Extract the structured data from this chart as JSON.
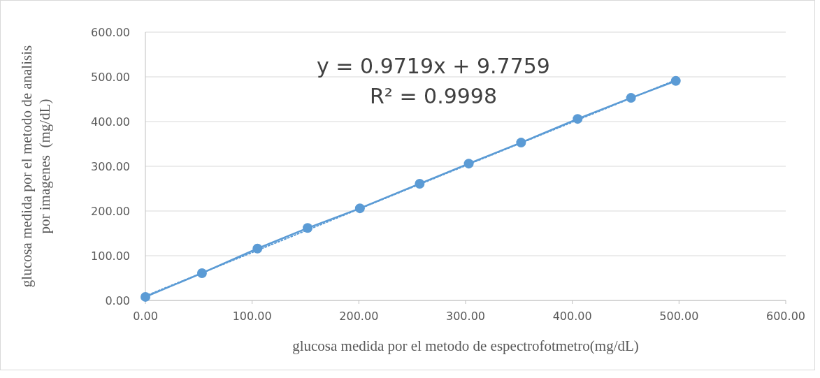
{
  "chart_data": {
    "type": "line",
    "xlabel": "glucosa medida por el metodo de espectrofotmetro(mg/dL)",
    "ylabel": "glucosa medida por el metodo de analisis por imagenes  (mg/dL)",
    "annotations": [
      "y = 0.9719x + 9.7759",
      "R² = 0.9998"
    ],
    "series": [
      {
        "color": "#5b9bd5",
        "marker": "circle",
        "line_style": "solid",
        "x": [
          0,
          53,
          105,
          152,
          201,
          257,
          303,
          352,
          405,
          455,
          497
        ],
        "values": [
          8,
          61,
          116,
          162,
          206,
          261,
          306,
          353,
          406,
          453,
          491
        ]
      },
      {
        "color": "#5b9bd5",
        "marker": "none",
        "line_style": "dotted",
        "x": [
          0,
          497
        ],
        "values": [
          10,
          493
        ]
      }
    ],
    "xlim": [
      0,
      600
    ],
    "ylim": [
      0,
      600
    ],
    "xticks": [
      {
        "value": 0,
        "label": "0.00"
      },
      {
        "value": 100,
        "label": "100.00"
      },
      {
        "value": 200,
        "label": "200.00"
      },
      {
        "value": 300,
        "label": "300.00"
      },
      {
        "value": 400,
        "label": "400.00"
      },
      {
        "value": 500,
        "label": "500.00"
      },
      {
        "value": 600,
        "label": "600.00"
      }
    ],
    "yticks": [
      {
        "value": 0,
        "label": "0.00"
      },
      {
        "value": 100,
        "label": "100.00"
      },
      {
        "value": 200,
        "label": "200.00"
      },
      {
        "value": 300,
        "label": "300.00"
      },
      {
        "value": 400,
        "label": "400.00"
      },
      {
        "value": 500,
        "label": "500.00"
      },
      {
        "value": 600,
        "label": "600.00"
      }
    ],
    "grid": "y"
  }
}
